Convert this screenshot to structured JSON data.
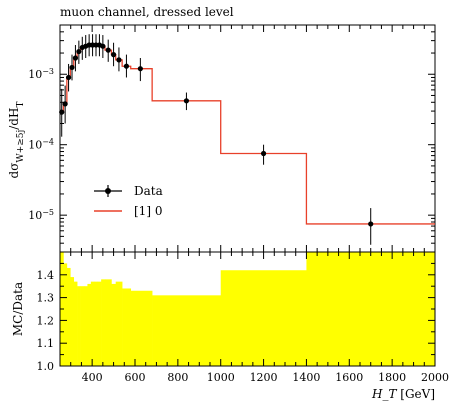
{
  "chart_data": [
    {
      "type": "line",
      "title": "muon channel, dressed level",
      "ylabel": "dσ_{W+≥5j}/dH_T",
      "yscale": "log",
      "xlim": [
        250,
        2000
      ],
      "ylim": [
        3e-06,
        0.005
      ],
      "yticks": [
        {
          "value": 0.001,
          "base": "10",
          "exp": "−3"
        },
        {
          "value": 0.0001,
          "base": "10",
          "exp": "−4"
        },
        {
          "value": 1e-05,
          "base": "10",
          "exp": "−5"
        }
      ],
      "legend_position": "bottom-left",
      "legend": [
        {
          "label": "Data",
          "style": "marker-errorbar",
          "color": "#000000"
        },
        {
          "label": "[1] 0",
          "style": "line",
          "color": "#e8402a"
        }
      ],
      "series": [
        {
          "name": "Data",
          "color": "#000000",
          "points": [
            {
              "x": 258,
              "y": 0.00029,
              "lo": 0.00013,
              "hi": 0.00062
            },
            {
              "x": 274,
              "y": 0.00038,
              "lo": 0.0002,
              "hi": 0.00069
            },
            {
              "x": 290,
              "y": 0.0009,
              "lo": 0.00057,
              "hi": 0.0014
            },
            {
              "x": 306,
              "y": 0.00125,
              "lo": 0.00082,
              "hi": 0.0019
            },
            {
              "x": 322,
              "y": 0.0017,
              "lo": 0.0011,
              "hi": 0.0026
            },
            {
              "x": 338,
              "y": 0.0021,
              "lo": 0.0014,
              "hi": 0.003
            },
            {
              "x": 354,
              "y": 0.0024,
              "lo": 0.0016,
              "hi": 0.0034
            },
            {
              "x": 370,
              "y": 0.0025,
              "lo": 0.0017,
              "hi": 0.0036
            },
            {
              "x": 386,
              "y": 0.0026,
              "lo": 0.0018,
              "hi": 0.0037
            },
            {
              "x": 402,
              "y": 0.0026,
              "lo": 0.0018,
              "hi": 0.0037
            },
            {
              "x": 418,
              "y": 0.0026,
              "lo": 0.0018,
              "hi": 0.0037
            },
            {
              "x": 434,
              "y": 0.0026,
              "lo": 0.0018,
              "hi": 0.0037
            },
            {
              "x": 450,
              "y": 0.0025,
              "lo": 0.0017,
              "hi": 0.0036
            },
            {
              "x": 475,
              "y": 0.0022,
              "lo": 0.0015,
              "hi": 0.0031
            },
            {
              "x": 500,
              "y": 0.0019,
              "lo": 0.0013,
              "hi": 0.0028
            },
            {
              "x": 525,
              "y": 0.0016,
              "lo": 0.0011,
              "hi": 0.0024
            },
            {
              "x": 560,
              "y": 0.0013,
              "lo": 0.0009,
              "hi": 0.0019
            },
            {
              "x": 625,
              "y": 0.0012,
              "lo": 0.0008,
              "hi": 0.0017
            },
            {
              "x": 840,
              "y": 0.00042,
              "lo": 0.00031,
              "hi": 0.00055
            },
            {
              "x": 1200,
              "y": 7.5e-05,
              "lo": 5.2e-05,
              "hi": 0.0001
            },
            {
              "x": 1700,
              "y": 7.5e-06,
              "lo": 3.8e-06,
              "hi": 1.26e-05
            }
          ]
        },
        {
          "name": "[1] 0",
          "color": "#e8402a",
          "bins": [
            {
              "x0": 250,
              "x1": 266,
              "y": 0.00029
            },
            {
              "x0": 266,
              "x1": 282,
              "y": 0.00039
            },
            {
              "x0": 282,
              "x1": 298,
              "y": 0.00088
            },
            {
              "x0": 298,
              "x1": 314,
              "y": 0.00125
            },
            {
              "x0": 314,
              "x1": 330,
              "y": 0.0017
            },
            {
              "x0": 330,
              "x1": 346,
              "y": 0.0021
            },
            {
              "x0": 346,
              "x1": 362,
              "y": 0.0024
            },
            {
              "x0": 362,
              "x1": 378,
              "y": 0.0025
            },
            {
              "x0": 378,
              "x1": 394,
              "y": 0.0026
            },
            {
              "x0": 394,
              "x1": 410,
              "y": 0.0026
            },
            {
              "x0": 410,
              "x1": 426,
              "y": 0.0026
            },
            {
              "x0": 426,
              "x1": 442,
              "y": 0.0026
            },
            {
              "x0": 442,
              "x1": 460,
              "y": 0.0025
            },
            {
              "x0": 460,
              "x1": 490,
              "y": 0.0022
            },
            {
              "x0": 490,
              "x1": 510,
              "y": 0.0019
            },
            {
              "x0": 510,
              "x1": 540,
              "y": 0.0016
            },
            {
              "x0": 540,
              "x1": 580,
              "y": 0.0013
            },
            {
              "x0": 580,
              "x1": 680,
              "y": 0.0012
            },
            {
              "x0": 680,
              "x1": 1000,
              "y": 0.00042
            },
            {
              "x0": 1000,
              "x1": 1400,
              "y": 7.5e-05
            },
            {
              "x0": 1400,
              "x1": 2000,
              "y": 7.5e-06
            }
          ]
        }
      ]
    },
    {
      "type": "area",
      "ylabel": "MC/Data",
      "xlabel_var": "H_T",
      "xlabel_unit": "[GeV]",
      "xlim": [
        250,
        2000
      ],
      "ylim": [
        1.0,
        1.5
      ],
      "xticks": [
        400,
        600,
        800,
        1000,
        1200,
        1400,
        1600,
        1800,
        2000
      ],
      "yticks": [
        "1.0",
        "1.1",
        "1.2",
        "1.3",
        "1.4"
      ],
      "ytick_values": [
        1.0,
        1.1,
        1.2,
        1.3,
        1.4
      ],
      "colors": {
        "band": "#ffff00"
      },
      "series": [
        {
          "bins": [
            {
              "x0": 250,
              "x1": 266,
              "y": 1.5
            },
            {
              "x0": 266,
              "x1": 282,
              "y": 1.45
            },
            {
              "x0": 282,
              "x1": 298,
              "y": 1.43
            },
            {
              "x0": 298,
              "x1": 314,
              "y": 1.39
            },
            {
              "x0": 314,
              "x1": 330,
              "y": 1.37
            },
            {
              "x0": 330,
              "x1": 346,
              "y": 1.35
            },
            {
              "x0": 346,
              "x1": 362,
              "y": 1.35
            },
            {
              "x0": 362,
              "x1": 378,
              "y": 1.35
            },
            {
              "x0": 378,
              "x1": 394,
              "y": 1.36
            },
            {
              "x0": 394,
              "x1": 410,
              "y": 1.37
            },
            {
              "x0": 410,
              "x1": 426,
              "y": 1.37
            },
            {
              "x0": 426,
              "x1": 442,
              "y": 1.37
            },
            {
              "x0": 442,
              "x1": 460,
              "y": 1.38
            },
            {
              "x0": 460,
              "x1": 490,
              "y": 1.38
            },
            {
              "x0": 490,
              "x1": 510,
              "y": 1.36
            },
            {
              "x0": 510,
              "x1": 540,
              "y": 1.37
            },
            {
              "x0": 540,
              "x1": 580,
              "y": 1.34
            },
            {
              "x0": 580,
              "x1": 680,
              "y": 1.33
            },
            {
              "x0": 680,
              "x1": 1000,
              "y": 1.31
            },
            {
              "x0": 1000,
              "x1": 1400,
              "y": 1.42
            },
            {
              "x0": 1400,
              "x1": 2000,
              "y": 1.5
            }
          ]
        }
      ]
    }
  ]
}
